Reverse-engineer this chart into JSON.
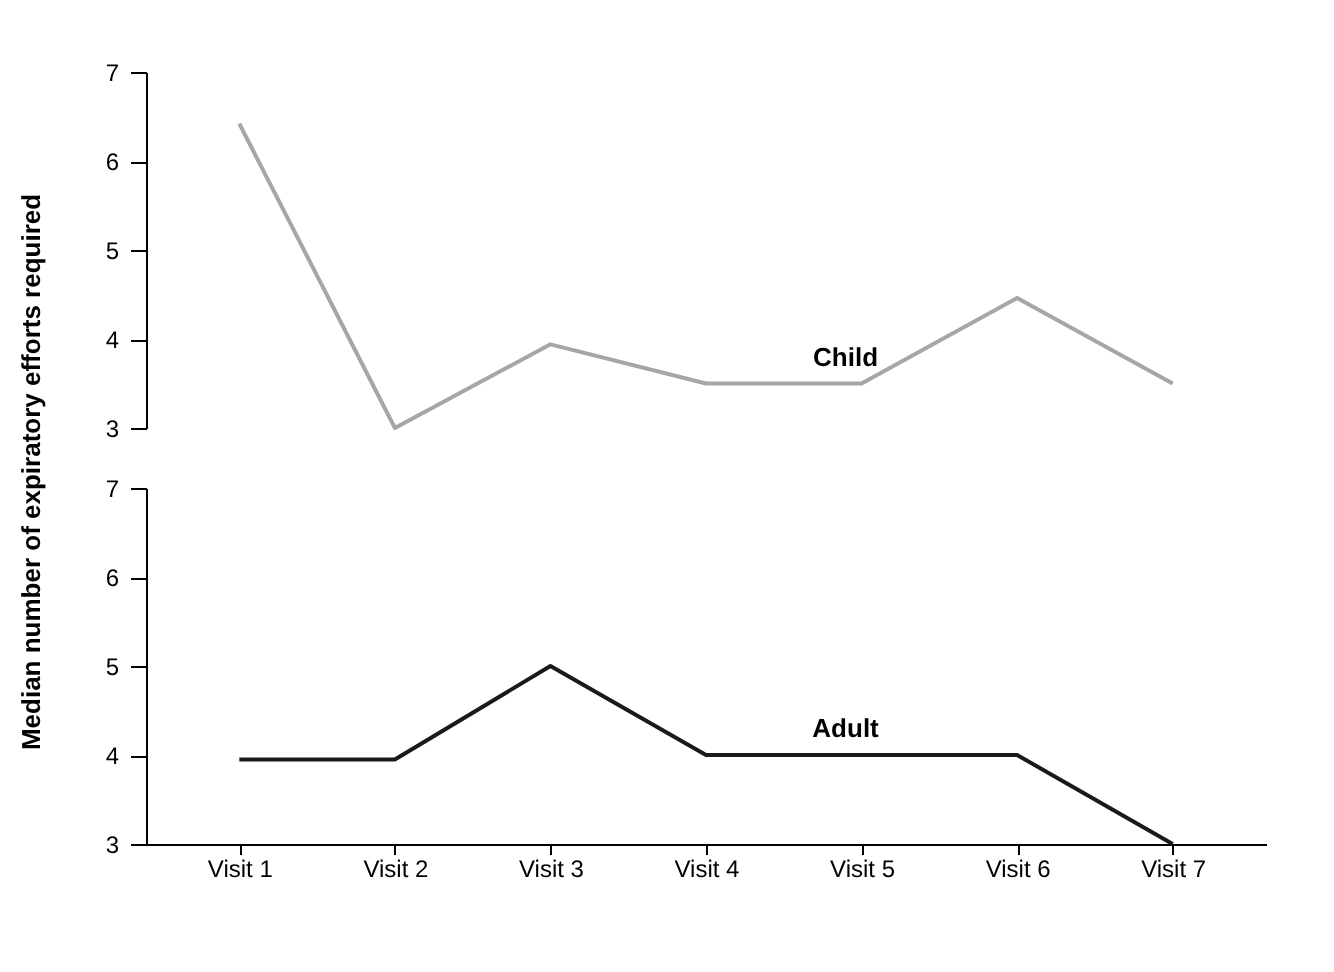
{
  "chart_data": [
    {
      "type": "line",
      "ylabel": "Median number of expiratory efforts required",
      "categories": [
        null,
        null,
        null,
        null,
        null,
        null,
        null
      ],
      "ylim": [
        3,
        7
      ],
      "yticks": [
        3,
        4,
        5,
        6,
        7
      ],
      "tick_labels": "y",
      "legend": false,
      "grid": false,
      "series": [
        {
          "name": "Child",
          "color": "#a6a6a6",
          "values": [
            6.42,
            3.0,
            3.94,
            3.5,
            3.5,
            4.46,
            3.5
          ]
        }
      ]
    },
    {
      "type": "line",
      "categories": [
        "Visit 1",
        "Visit 2",
        "Visit 3",
        "Visit 4",
        "Visit 5",
        "Visit 6",
        "Visit 7"
      ],
      "ylim": [
        3,
        7
      ],
      "yticks": [
        3,
        4,
        5,
        6,
        7
      ],
      "legend": false,
      "grid": false,
      "series": [
        {
          "name": "Adult",
          "color": "#1a1a1a",
          "values": [
            3.95,
            3.95,
            5.0,
            4.0,
            4.0,
            4.0,
            3.0
          ]
        }
      ]
    }
  ]
}
